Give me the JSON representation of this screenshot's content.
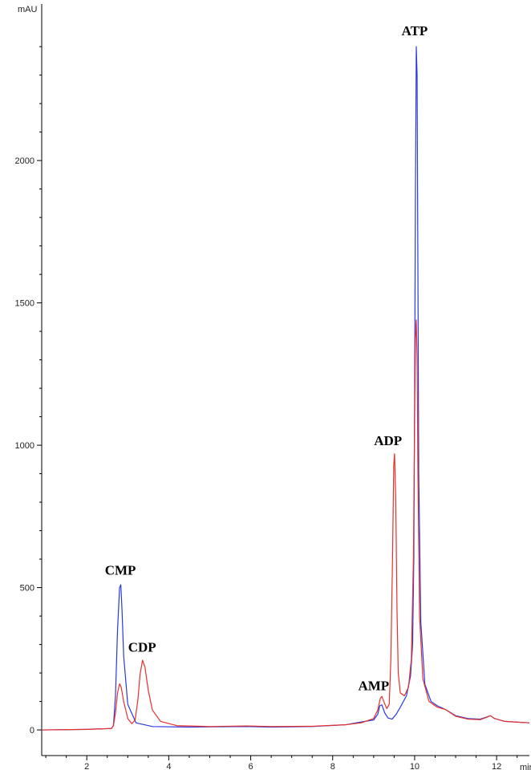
{
  "chart_data": {
    "type": "line",
    "title": "",
    "xlabel": "min",
    "ylabel": "mAU",
    "xlim": [
      0.9,
      12.8
    ],
    "ylim": [
      -90,
      2530
    ],
    "x_ticks": [
      2,
      4,
      6,
      8,
      10,
      12
    ],
    "y_ticks": [
      0,
      500,
      1000,
      1500,
      2000
    ],
    "grid": false,
    "series": [
      {
        "name": "blue trace",
        "color": "#2a3adf",
        "points": [
          [
            0.9,
            0
          ],
          [
            2.0,
            2
          ],
          [
            2.6,
            5
          ],
          [
            2.65,
            15
          ],
          [
            2.7,
            120
          ],
          [
            2.75,
            350
          ],
          [
            2.8,
            500
          ],
          [
            2.83,
            510
          ],
          [
            2.86,
            420
          ],
          [
            2.9,
            260
          ],
          [
            3.0,
            90
          ],
          [
            3.2,
            25
          ],
          [
            3.6,
            12
          ],
          [
            4.5,
            10
          ],
          [
            5.9,
            12
          ],
          [
            6.5,
            10
          ],
          [
            7.5,
            12
          ],
          [
            8.3,
            18
          ],
          [
            8.7,
            28
          ],
          [
            9.0,
            35
          ],
          [
            9.1,
            55
          ],
          [
            9.15,
            85
          ],
          [
            9.2,
            88
          ],
          [
            9.27,
            60
          ],
          [
            9.35,
            42
          ],
          [
            9.45,
            38
          ],
          [
            9.55,
            55
          ],
          [
            9.65,
            80
          ],
          [
            9.8,
            120
          ],
          [
            9.9,
            190
          ],
          [
            9.95,
            300
          ],
          [
            9.98,
            600
          ],
          [
            10.0,
            1200
          ],
          [
            10.02,
            1900
          ],
          [
            10.04,
            2400
          ],
          [
            10.06,
            2300
          ],
          [
            10.08,
            1600
          ],
          [
            10.1,
            900
          ],
          [
            10.15,
            380
          ],
          [
            10.25,
            160
          ],
          [
            10.4,
            100
          ],
          [
            10.55,
            85
          ],
          [
            10.75,
            72
          ],
          [
            11.0,
            50
          ],
          [
            11.3,
            40
          ],
          [
            11.6,
            38
          ],
          [
            11.75,
            45
          ],
          [
            11.85,
            50
          ],
          [
            11.95,
            40
          ],
          [
            12.2,
            30
          ],
          [
            12.8,
            25
          ]
        ]
      },
      {
        "name": "red trace",
        "color": "#e8302a",
        "points": [
          [
            0.9,
            0
          ],
          [
            2.0,
            2
          ],
          [
            2.6,
            5
          ],
          [
            2.65,
            15
          ],
          [
            2.7,
            60
          ],
          [
            2.75,
            130
          ],
          [
            2.8,
            162
          ],
          [
            2.84,
            150
          ],
          [
            2.9,
            100
          ],
          [
            3.0,
            40
          ],
          [
            3.1,
            22
          ],
          [
            3.18,
            35
          ],
          [
            3.25,
            110
          ],
          [
            3.3,
            195
          ],
          [
            3.36,
            245
          ],
          [
            3.42,
            220
          ],
          [
            3.5,
            140
          ],
          [
            3.6,
            70
          ],
          [
            3.8,
            30
          ],
          [
            4.2,
            15
          ],
          [
            5.0,
            12
          ],
          [
            5.9,
            14
          ],
          [
            6.5,
            12
          ],
          [
            7.5,
            13
          ],
          [
            8.3,
            18
          ],
          [
            8.7,
            25
          ],
          [
            9.0,
            40
          ],
          [
            9.1,
            70
          ],
          [
            9.16,
            110
          ],
          [
            9.2,
            118
          ],
          [
            9.26,
            95
          ],
          [
            9.32,
            75
          ],
          [
            9.38,
            90
          ],
          [
            9.42,
            250
          ],
          [
            9.46,
            600
          ],
          [
            9.49,
            930
          ],
          [
            9.51,
            970
          ],
          [
            9.54,
            800
          ],
          [
            9.57,
            420
          ],
          [
            9.6,
            200
          ],
          [
            9.65,
            130
          ],
          [
            9.75,
            120
          ],
          [
            9.85,
            150
          ],
          [
            9.92,
            250
          ],
          [
            9.97,
            600
          ],
          [
            10.0,
            1100
          ],
          [
            10.02,
            1380
          ],
          [
            10.04,
            1440
          ],
          [
            10.06,
            1300
          ],
          [
            10.08,
            900
          ],
          [
            10.12,
            400
          ],
          [
            10.2,
            180
          ],
          [
            10.35,
            100
          ],
          [
            10.55,
            80
          ],
          [
            10.75,
            72
          ],
          [
            11.0,
            48
          ],
          [
            11.3,
            38
          ],
          [
            11.6,
            36
          ],
          [
            11.75,
            44
          ],
          [
            11.85,
            50
          ],
          [
            11.95,
            40
          ],
          [
            12.2,
            30
          ],
          [
            12.8,
            25
          ]
        ]
      }
    ],
    "annotations": [
      {
        "text": "CMP",
        "x": 2.82,
        "y": 545
      },
      {
        "text": "CDP",
        "x": 3.35,
        "y": 275
      },
      {
        "text": "AMP",
        "x": 9.0,
        "y": 140
      },
      {
        "text": "ADP",
        "x": 9.35,
        "y": 1000
      },
      {
        "text": "ATP",
        "x": 10.0,
        "y": 2440
      }
    ]
  }
}
